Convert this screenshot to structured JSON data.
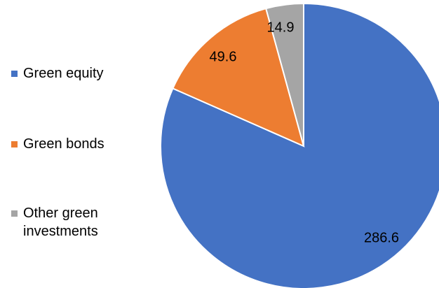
{
  "chart_data": {
    "type": "pie",
    "title": "",
    "categories": [
      "Green equity",
      "Green bonds",
      "Other green investments"
    ],
    "values": [
      286.6,
      49.6,
      14.9
    ],
    "colors": [
      "#4472C4",
      "#ED7D31",
      "#A5A5A5"
    ],
    "start_angle": "12 o'clock",
    "direction": "clockwise",
    "legend_position": "left"
  },
  "legend": {
    "items": [
      {
        "label_line1": "Green equity",
        "label_line2": ""
      },
      {
        "label_line1": "Green bonds",
        "label_line2": ""
      },
      {
        "label_line1": "Other green",
        "label_line2": "investments"
      }
    ]
  }
}
